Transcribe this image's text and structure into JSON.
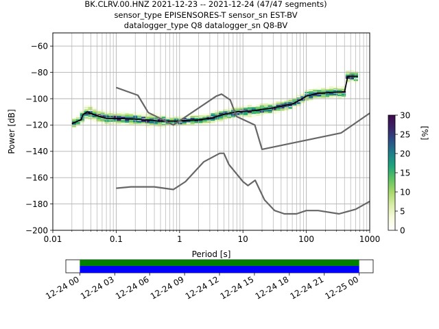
{
  "chart_data": {
    "type": "heatmap",
    "title_lines": [
      "BK.CLRV.00.HNZ   2021-12-23 -- 2021-12-24  (47/47 segments)",
      "sensor_type EPISENSORES-T sensor_sn EST-BV",
      "datalogger_type Q8 datalogger_sn Q8-BV"
    ],
    "xlabel": "Period [s]",
    "ylabel": "Power [dB]",
    "xscale": "log",
    "xlim": [
      0.01,
      1000
    ],
    "ylim": [
      -200,
      -50
    ],
    "x_ticks": [
      {
        "v": 0.01,
        "label": "0.01"
      },
      {
        "v": 0.1,
        "label": "0.1"
      },
      {
        "v": 1,
        "label": "1"
      },
      {
        "v": 10,
        "label": "10"
      },
      {
        "v": 100,
        "label": "100"
      },
      {
        "v": 1000,
        "label": "1000"
      }
    ],
    "y_ticks": [
      {
        "v": -60,
        "label": "−60"
      },
      {
        "v": -80,
        "label": "−80"
      },
      {
        "v": -100,
        "label": "−100"
      },
      {
        "v": -120,
        "label": "−120"
      },
      {
        "v": -140,
        "label": "−140"
      },
      {
        "v": -160,
        "label": "−160"
      },
      {
        "v": -180,
        "label": "−180"
      },
      {
        "v": -200,
        "label": "−200"
      }
    ],
    "grid": true,
    "grid_color": "#b0b0b0",
    "colorbar": {
      "label": "[%]",
      "min": 0,
      "max": 30,
      "ticks": [
        {
          "v": 0,
          "label": "0"
        },
        {
          "v": 5,
          "label": "5"
        },
        {
          "v": 10,
          "label": "10"
        },
        {
          "v": 15,
          "label": "15"
        },
        {
          "v": 20,
          "label": "20"
        },
        {
          "v": 25,
          "label": "25"
        },
        {
          "v": 30,
          "label": "30"
        }
      ],
      "colormap": [
        "#ffffff",
        "#f7fbdc",
        "#d8eda6",
        "#a6d86a",
        "#5fc262",
        "#1fa57b",
        "#1f7f8a",
        "#2b4f86",
        "#3a2468",
        "#3d0a4a"
      ]
    },
    "series": [
      {
        "name": "mode",
        "style": "black",
        "points": [
          [
            0.02,
            -119
          ],
          [
            0.025,
            -117
          ],
          [
            0.028,
            -116
          ],
          [
            0.03,
            -112
          ],
          [
            0.035,
            -110
          ],
          [
            0.05,
            -113
          ],
          [
            0.07,
            -115
          ],
          [
            0.1,
            -115
          ],
          [
            0.2,
            -115.5
          ],
          [
            0.5,
            -117
          ],
          [
            1,
            -117
          ],
          [
            2,
            -116
          ],
          [
            3,
            -115
          ],
          [
            5,
            -112
          ],
          [
            8,
            -110
          ],
          [
            15,
            -109
          ],
          [
            30,
            -107
          ],
          [
            60,
            -104
          ],
          [
            80,
            -101
          ],
          [
            100,
            -98
          ],
          [
            150,
            -96
          ],
          [
            300,
            -95
          ],
          [
            400,
            -95
          ],
          [
            450,
            -83
          ],
          [
            650,
            -83
          ]
        ]
      },
      {
        "name": "nlnm",
        "style": "gray",
        "points": [
          [
            0.1,
            -168
          ],
          [
            0.17,
            -167
          ],
          [
            0.4,
            -167
          ],
          [
            0.8,
            -169
          ],
          [
            1.24,
            -163
          ],
          [
            2.4,
            -148
          ],
          [
            4.3,
            -141.5
          ],
          [
            5,
            -141.5
          ],
          [
            6,
            -150
          ],
          [
            10,
            -163
          ],
          [
            12,
            -166
          ],
          [
            15.6,
            -162
          ],
          [
            21.9,
            -177
          ],
          [
            31.6,
            -185
          ],
          [
            45,
            -187.5
          ],
          [
            70,
            -187.5
          ],
          [
            100,
            -185
          ],
          [
            154,
            -185
          ],
          [
            328,
            -187.5
          ],
          [
            600,
            -184
          ],
          [
            1000,
            -178
          ]
        ]
      },
      {
        "name": "nhnm",
        "style": "gray",
        "points": [
          [
            0.1,
            -91.5
          ],
          [
            0.22,
            -97.4
          ],
          [
            0.32,
            -110.5
          ],
          [
            0.8,
            -120
          ],
          [
            3.8,
            -98
          ],
          [
            4.6,
            -96.5
          ],
          [
            6.3,
            -101
          ],
          [
            7.9,
            -113.5
          ],
          [
            15.4,
            -120
          ],
          [
            20,
            -138.5
          ],
          [
            354.8,
            -126
          ],
          [
            1000,
            -111
          ]
        ]
      }
    ],
    "timeline": {
      "labels": [
        "12-24 00",
        "12-24 03",
        "12-24 06",
        "12-24 09",
        "12-24 12",
        "12-24 15",
        "12-24 18",
        "12-24 21",
        "12-25 00"
      ],
      "hours": [
        0,
        3,
        6,
        9,
        12,
        15,
        18,
        21,
        24
      ],
      "range_hours": [
        -1.2,
        25.2
      ],
      "coverage_hours": [
        0,
        24
      ],
      "colors": {
        "data": "#008000",
        "gaps": "#0000ff"
      }
    }
  }
}
